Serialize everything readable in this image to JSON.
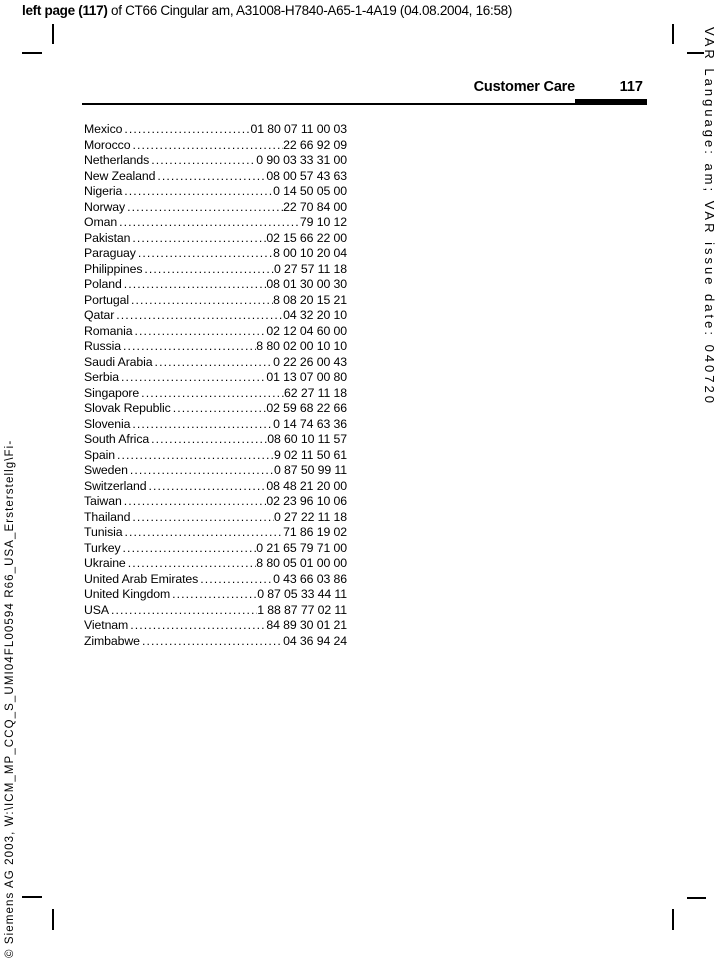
{
  "document_header": {
    "page_label_bold": "left page (117)",
    "page_label_rest": " of CT66 Cingular am, A31008-H7840-A65-1-4A19 (04.08.2004, 16:58)"
  },
  "section_header": {
    "title": "Customer Care",
    "page_number": "117"
  },
  "margin_notes": {
    "right_vertical": "VAR Language: am; VAR issue date: 040720",
    "left_vertical": "© Siemens AG 2003, W:\\ICM_MP_CCQ_S_UMI04FL00594 R66_USA_Ersterstellg\\Fi-"
  },
  "customer_care_numbers": [
    {
      "country": "Mexico",
      "phone": "01 80 07 11 00 03"
    },
    {
      "country": "Morocco",
      "phone": "22 66 92 09"
    },
    {
      "country": "Netherlands",
      "phone": "0 90 03 33 31 00"
    },
    {
      "country": "New Zealand",
      "phone": "08 00 57 43 63"
    },
    {
      "country": "Nigeria",
      "phone": "0 14 50 05 00"
    },
    {
      "country": "Norway",
      "phone": "22 70 84 00"
    },
    {
      "country": "Oman",
      "phone": "79 10 12"
    },
    {
      "country": "Pakistan",
      "phone": "02 15 66 22 00"
    },
    {
      "country": "Paraguay",
      "phone": "8 00 10 20 04"
    },
    {
      "country": "Philippines",
      "phone": "0 27 57 11 18"
    },
    {
      "country": "Poland",
      "phone": "08 01 30 00 30"
    },
    {
      "country": "Portugal",
      "phone": "8 08 20 15 21"
    },
    {
      "country": "Qatar",
      "phone": "04 32 20 10"
    },
    {
      "country": "Romania",
      "phone": "02 12 04 60 00"
    },
    {
      "country": "Russia",
      "phone": "8 80 02 00 10 10"
    },
    {
      "country": "Saudi Arabia",
      "phone": "0 22 26 00 43"
    },
    {
      "country": "Serbia",
      "phone": "01 13 07 00 80"
    },
    {
      "country": "Singapore",
      "phone": "62 27 11 18"
    },
    {
      "country": "Slovak Republic",
      "phone": "02 59 68 22 66"
    },
    {
      "country": "Slovenia",
      "phone": "0 14 74 63 36"
    },
    {
      "country": "South Africa",
      "phone": "08 60 10 11 57"
    },
    {
      "country": "Spain",
      "phone": "9 02 11 50 61"
    },
    {
      "country": "Sweden",
      "phone": "0 87 50 99 11"
    },
    {
      "country": "Switzerland",
      "phone": "08 48 21 20 00"
    },
    {
      "country": "Taiwan",
      "phone": "02 23 96 10 06"
    },
    {
      "country": "Thailand",
      "phone": "0 27 22 11 18"
    },
    {
      "country": "Tunisia",
      "phone": "71 86 19 02"
    },
    {
      "country": "Turkey",
      "phone": "0 21 65 79 71 00"
    },
    {
      "country": "Ukraine",
      "phone": "8 80 05 01 00 00"
    },
    {
      "country": "United Arab Emirates",
      "phone": "0 43 66 03 86"
    },
    {
      "country": "United Kingdom",
      "phone": "0 87 05 33 44 11"
    },
    {
      "country": "USA",
      "phone": "1 88 87 77 02 11"
    },
    {
      "country": "Vietnam",
      "phone": "84 89 30 01 21"
    },
    {
      "country": "Zimbabwe",
      "phone": "04 36 94 24"
    }
  ]
}
